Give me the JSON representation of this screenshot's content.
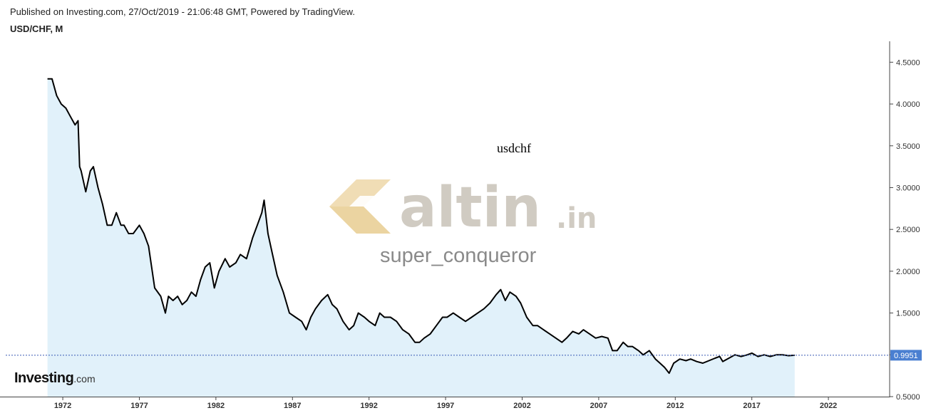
{
  "header": {
    "published": "Published on Investing.com, 27/Oct/2019 - 21:06:48 GMT, Powered by TradingView.",
    "title": "USD/CHF, M"
  },
  "brand": {
    "name": "Investing",
    "suffix": ".com"
  },
  "watermark": {
    "logo_text": "altin",
    "logo_suffix": ".in",
    "user": "super_conqueror",
    "annotation": "usdchf"
  },
  "colors": {
    "line": "#000000",
    "area": "#e1f1fa",
    "price_tag": "#4a7fd1",
    "dotted_line": "#3b5bb5",
    "logo_gray": "#c8c2b8",
    "logo_gold": "#e6c98a"
  },
  "chart_data": {
    "type": "area",
    "title": "USD/CHF, M",
    "xlabel": "",
    "ylabel": "",
    "x_ticks": [
      "1972",
      "1977",
      "1982",
      "1987",
      "1992",
      "1997",
      "2002",
      "2007",
      "2012",
      "2017",
      "2022"
    ],
    "y_ticks": [
      "0.5000",
      "1.0000",
      "1.5000",
      "2.0000",
      "2.5000",
      "3.0000",
      "3.5000",
      "4.0000",
      "4.5000"
    ],
    "xlim": [
      1967.9,
      2026.0
    ],
    "ylim": [
      0.5,
      4.75
    ],
    "last_price": "0.9951",
    "grid": false,
    "series": [
      {
        "x": [
          1971.0,
          1971.3,
          1971.6,
          1971.9,
          1972.2,
          1972.5,
          1972.8,
          1973.0,
          1973.1,
          1973.2,
          1973.5,
          1973.8,
          1974.0,
          1974.3,
          1974.6,
          1974.9,
          1975.2,
          1975.5,
          1975.8,
          1976.0,
          1976.3,
          1976.6,
          1977.0,
          1977.3,
          1977.6,
          1978.0,
          1978.4,
          1978.7,
          1978.9,
          1979.2,
          1979.5,
          1979.8,
          1980.1,
          1980.4,
          1980.7,
          1981.0,
          1981.3,
          1981.6,
          1981.9,
          1982.2,
          1982.6,
          1982.9,
          1983.3,
          1983.6,
          1984.0,
          1984.4,
          1984.7,
          1985.0,
          1985.15,
          1985.4,
          1985.7,
          1986.0,
          1986.4,
          1986.8,
          1987.2,
          1987.6,
          1987.9,
          1988.2,
          1988.5,
          1988.9,
          1989.3,
          1989.6,
          1989.9,
          1990.3,
          1990.7,
          1991.0,
          1991.3,
          1991.7,
          1992.0,
          1992.4,
          1992.7,
          1993.0,
          1993.4,
          1993.8,
          1994.2,
          1994.6,
          1995.0,
          1995.3,
          1995.6,
          1996.0,
          1996.4,
          1996.8,
          1997.1,
          1997.5,
          1997.9,
          1998.3,
          1998.7,
          1999.1,
          1999.5,
          1999.9,
          2000.3,
          2000.6,
          2000.9,
          2001.2,
          2001.6,
          2001.9,
          2002.3,
          2002.7,
          2003.0,
          2003.4,
          2003.8,
          2004.2,
          2004.6,
          2004.9,
          2005.3,
          2005.7,
          2006.0,
          2006.4,
          2006.8,
          2007.2,
          2007.6,
          2007.9,
          2008.2,
          2008.6,
          2008.9,
          2009.2,
          2009.6,
          2009.9,
          2010.3,
          2010.7,
          2011.0,
          2011.3,
          2011.6,
          2011.9,
          2012.3,
          2012.7,
          2013.0,
          2013.4,
          2013.8,
          2014.2,
          2014.6,
          2014.9,
          2015.1,
          2015.5,
          2015.9,
          2016.3,
          2016.7,
          2017.0,
          2017.4,
          2017.8,
          2018.2,
          2018.6,
          2019.0,
          2019.4,
          2019.8
        ],
        "y": [
          4.3,
          4.3,
          4.1,
          4.0,
          3.95,
          3.85,
          3.75,
          3.8,
          3.25,
          3.2,
          2.95,
          3.2,
          3.25,
          3.0,
          2.8,
          2.55,
          2.55,
          2.7,
          2.55,
          2.55,
          2.45,
          2.45,
          2.55,
          2.45,
          2.3,
          1.8,
          1.7,
          1.5,
          1.7,
          1.65,
          1.7,
          1.6,
          1.65,
          1.75,
          1.7,
          1.9,
          2.05,
          2.1,
          1.8,
          2.0,
          2.15,
          2.05,
          2.1,
          2.2,
          2.15,
          2.4,
          2.55,
          2.7,
          2.85,
          2.45,
          2.2,
          1.95,
          1.75,
          1.5,
          1.45,
          1.4,
          1.3,
          1.45,
          1.55,
          1.65,
          1.72,
          1.6,
          1.55,
          1.4,
          1.3,
          1.35,
          1.5,
          1.45,
          1.4,
          1.35,
          1.5,
          1.45,
          1.45,
          1.4,
          1.3,
          1.25,
          1.15,
          1.15,
          1.2,
          1.25,
          1.35,
          1.45,
          1.45,
          1.5,
          1.45,
          1.4,
          1.45,
          1.5,
          1.55,
          1.62,
          1.72,
          1.78,
          1.65,
          1.75,
          1.7,
          1.62,
          1.45,
          1.35,
          1.35,
          1.3,
          1.25,
          1.2,
          1.15,
          1.2,
          1.28,
          1.25,
          1.3,
          1.25,
          1.2,
          1.22,
          1.2,
          1.05,
          1.05,
          1.15,
          1.1,
          1.1,
          1.05,
          1.0,
          1.05,
          0.95,
          0.9,
          0.85,
          0.78,
          0.9,
          0.95,
          0.93,
          0.95,
          0.92,
          0.9,
          0.93,
          0.96,
          0.98,
          0.92,
          0.96,
          1.0,
          0.98,
          1.0,
          1.02,
          0.98,
          1.0,
          0.98,
          1.0,
          1.0,
          0.99,
          0.995
        ]
      }
    ]
  }
}
